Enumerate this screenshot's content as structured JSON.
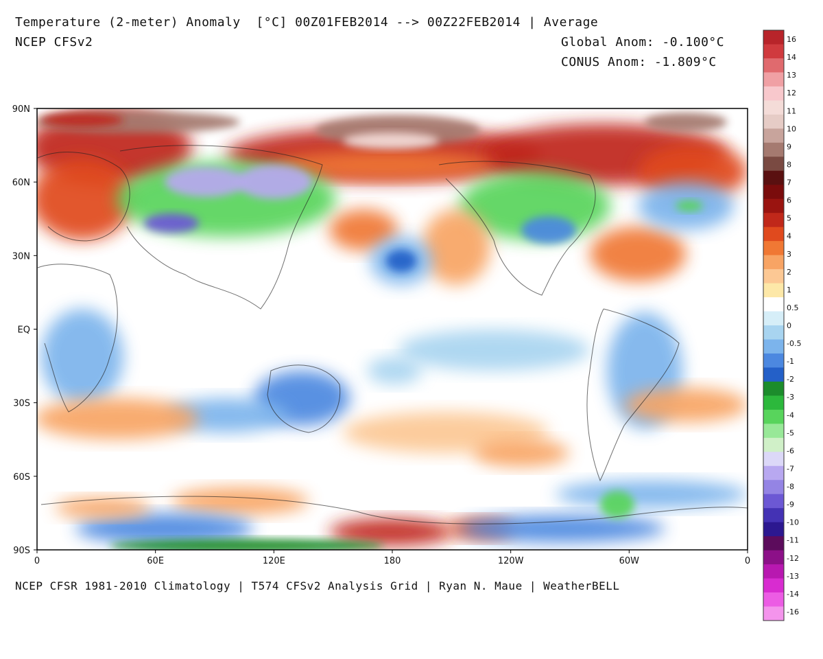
{
  "header": {
    "title": "Temperature (2-meter) Anomaly  [°C] 00Z01FEB2014 --> 00Z22FEB2014 | Average",
    "model": "NCEP CFSv2",
    "global_anom": "Global Anom: -0.100°C",
    "conus_anom": "CONUS Anom: -1.809°C"
  },
  "footer": "NCEP CFSR 1981-2010 Climatology | T574 CFSv2 Analysis Grid | Ryan N. Maue | WeatherBELL",
  "axes": {
    "lat_labels": [
      "90N",
      "60N",
      "30N",
      "EQ",
      "30S",
      "60S",
      "90S"
    ],
    "lon_labels": [
      "0",
      "60E",
      "120E",
      "180",
      "120W",
      "60W",
      "0"
    ]
  },
  "colorbar": {
    "labels": [
      "16",
      "14",
      "13",
      "12",
      "11",
      "10",
      "9",
      "8",
      "7",
      "6",
      "5",
      "4",
      "3",
      "2",
      "1",
      "0.5",
      "0",
      "-0.5",
      "-1",
      "-2",
      "-3",
      "-4",
      "-5",
      "-6",
      "-7",
      "-8",
      "-9",
      "-10",
      "-11",
      "-12",
      "-13",
      "-14",
      "-16"
    ],
    "colors": [
      "#b8242a",
      "#d03a3e",
      "#e06a6e",
      "#f0a0a4",
      "#f8c8cc",
      "#f4dcd8",
      "#e6ccc6",
      "#c8a49c",
      "#a57a70",
      "#7a4a42",
      "#5a1010",
      "#7a0c0c",
      "#9a1410",
      "#c0281a",
      "#e04a1e",
      "#f07834",
      "#f8a464",
      "#fcc894",
      "#fde8a8",
      "#ffffff",
      "#d6eef8",
      "#a8d4f0",
      "#7cb4ec",
      "#4c88e0",
      "#2460c8",
      "#1c8c2c",
      "#2cb83c",
      "#58d45c",
      "#98e898",
      "#d0f0c8",
      "#dcd8f8",
      "#b8a8f0",
      "#9484e4",
      "#6c58d4",
      "#4432b4",
      "#2c1890",
      "#5c0c5c",
      "#8c1088",
      "#b818b0",
      "#d82cd0",
      "#ec5ce4",
      "#f494ec"
    ]
  },
  "map_fields": {
    "background": "#ffffff",
    "warm_colors": [
      "#fde8a8",
      "#fcc894",
      "#f8a464",
      "#f07834",
      "#e04a1e",
      "#c0281a",
      "#9a1410"
    ],
    "cold_colors": [
      "#d6eef8",
      "#a8d4f0",
      "#7cb4ec",
      "#4c88e0",
      "#2460c8"
    ],
    "very_cold_colors": [
      "#1c8c2c",
      "#58d45c",
      "#98e898",
      "#b8a8f0",
      "#6c58d4"
    ],
    "arctic_cap_colors": [
      "#5a1010",
      "#a57a70",
      "#f4dcd8"
    ]
  }
}
